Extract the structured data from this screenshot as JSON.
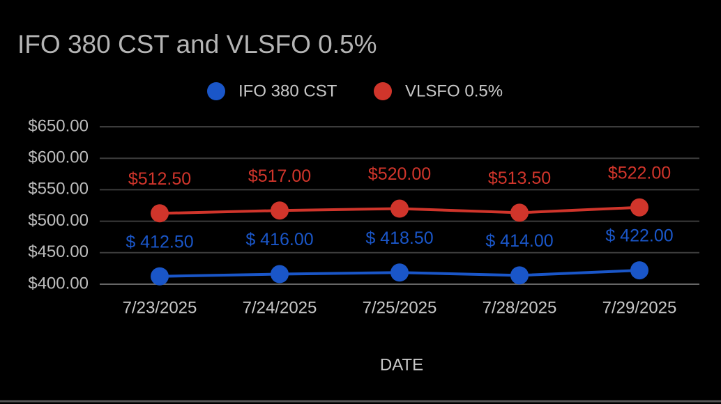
{
  "chart_data": {
    "type": "line",
    "title": "IFO 380 CST and VLSFO 0.5%",
    "x_label": "DATE",
    "categories": [
      "7/23/2025",
      "7/24/2025",
      "7/25/2025",
      "7/28/2025",
      "7/29/2025"
    ],
    "series": [
      {
        "name": "IFO 380 CST",
        "color": "#1a56c8",
        "values": [
          412.5,
          416,
          418.5,
          414,
          422
        ],
        "value_labels": [
          "$ 412.50",
          "$ 416.00",
          "$ 418.50",
          "$ 414.00",
          "$ 422.00"
        ]
      },
      {
        "name": "VLSFO 0.5%",
        "color": "#d0352b",
        "values": [
          512.5,
          517,
          520,
          513.5,
          522
        ],
        "value_labels": [
          "$512.50",
          "$517.00",
          "$520.00",
          "$513.50",
          "$522.00"
        ]
      }
    ],
    "ylim": [
      400,
      650
    ],
    "yticks": [
      {
        "value": 400,
        "label": "$400.00"
      },
      {
        "value": 450,
        "label": "$450.00"
      },
      {
        "value": 500,
        "label": "$500.00"
      },
      {
        "value": 550,
        "label": "$550.00"
      },
      {
        "value": 600,
        "label": "$600.00"
      },
      {
        "value": 650,
        "label": "$650.00"
      }
    ],
    "grid": true,
    "legend": "top"
  }
}
